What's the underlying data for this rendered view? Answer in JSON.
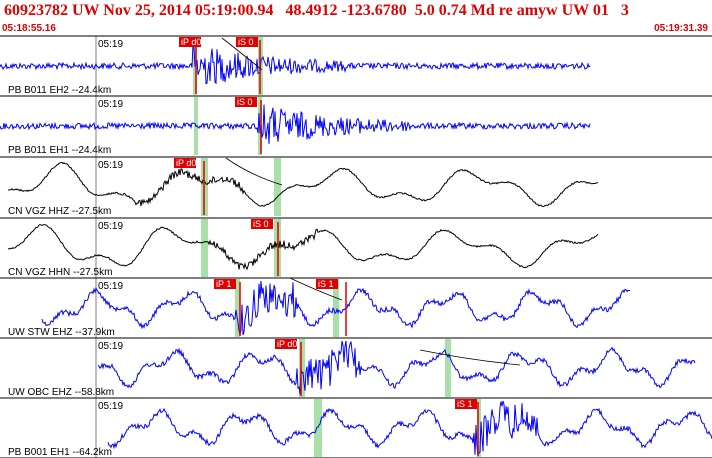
{
  "header": {
    "title": "60923782 UW Nov 25, 2014 05:19:00.94   48.4912 -123.6780  5.0 0.74 Md re amyw UW 01   3",
    "start_time": "05:18:55.16",
    "end_time": "05:19:31.39"
  },
  "colors": {
    "header_text": "#e00000",
    "trace_blue": "#0000ff",
    "trace_black": "#000000",
    "pick_red": "#e00000",
    "window_green": "#a8e0a8"
  },
  "channels": [
    {
      "time_label": "05:19",
      "label": "PB B011 EH2 --24.4km",
      "color": "#0000ff",
      "picks": [
        "iP d0",
        "iS 0"
      ],
      "style": "noise"
    },
    {
      "time_label": "05:19",
      "label": "PB B011 EH1 --24.4km",
      "color": "#0000ff",
      "picks": [
        "iS 0"
      ],
      "style": "noise"
    },
    {
      "time_label": "05:19",
      "label": "CN VGZ HHZ --27.5km",
      "color": "#000000",
      "picks": [
        "iP d0"
      ],
      "style": "wave"
    },
    {
      "time_label": "05:19",
      "label": "CN VGZ HHN --27.5km",
      "color": "#000000",
      "picks": [
        "iS 0"
      ],
      "style": "wave"
    },
    {
      "time_label": "05:19",
      "label": "UW STW EHZ --37.9km",
      "color": "#0000ff",
      "picks": [
        "iP 1",
        "iS 1"
      ],
      "style": "wavy"
    },
    {
      "time_label": "05:19",
      "label": "UW OBC EHZ --58.8km",
      "color": "#0000ff",
      "picks": [
        "iP d0"
      ],
      "style": "wavy"
    },
    {
      "time_label": "05:19",
      "label": "PB B001 EH1 --64.2km",
      "color": "#0000ff",
      "picks": [
        "iS 1"
      ],
      "style": "wavy"
    }
  ]
}
